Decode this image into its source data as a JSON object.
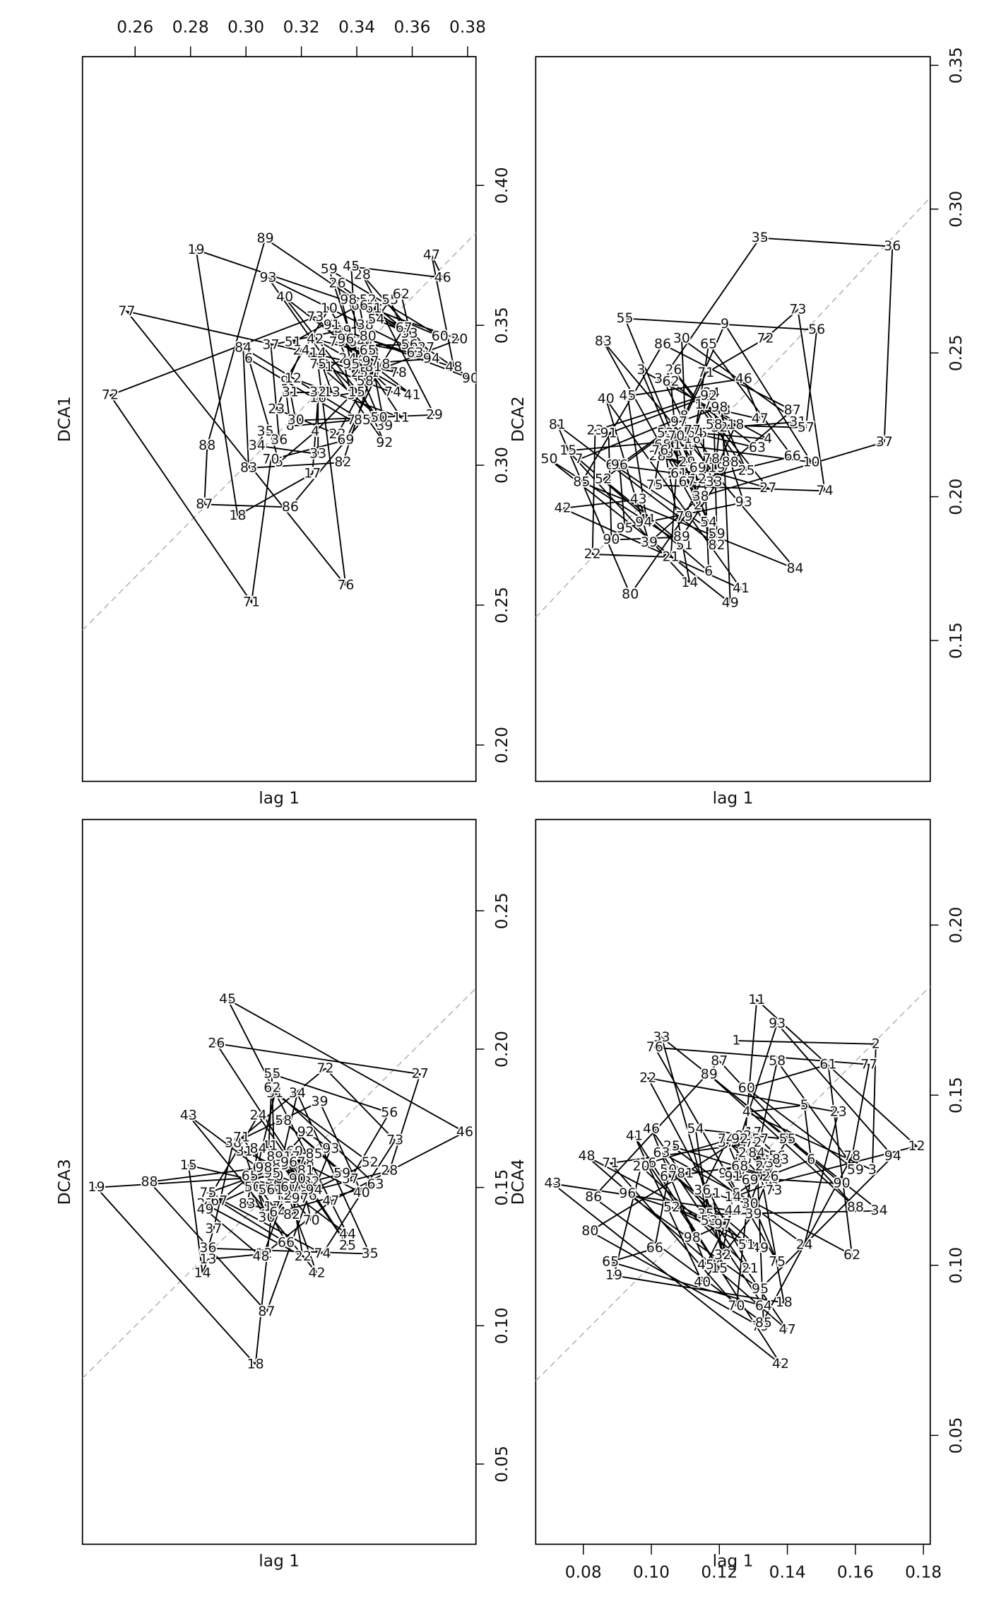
{
  "chart_data": [
    {
      "type": "lag",
      "y_label": "DCA1",
      "x_label": "lag 1",
      "x_axis_side": "top",
      "diagonal": true,
      "color": "#000000",
      "xlim": [
        0.241,
        0.383
      ],
      "ylim": [
        0.187,
        0.446
      ],
      "xticks": [
        0.26,
        0.28,
        {
          "value": 0.3,
          "label": "0.30"
        },
        0.32,
        0.34,
        0.36,
        0.38
      ],
      "yticks": [
        {
          "value": 0.2,
          "label": "0.20"
        },
        0.25,
        {
          "value": 0.3,
          "label": "0.30"
        },
        0.35,
        {
          "value": 0.4,
          "label": "0.40"
        }
      ],
      "labels": [
        null,
        1,
        2,
        3,
        4,
        5,
        6,
        7,
        8,
        9,
        10,
        11,
        12,
        13,
        14,
        15,
        16,
        17,
        18,
        19,
        20,
        21,
        22,
        23,
        24,
        25,
        26,
        27,
        28,
        29,
        30,
        31,
        32,
        33,
        34,
        35,
        36,
        37,
        38,
        39,
        40,
        41,
        42,
        43,
        44,
        45,
        46,
        47,
        48,
        49,
        50,
        51,
        52,
        53,
        54,
        55,
        56,
        57,
        58,
        59,
        60,
        61,
        62,
        63,
        64,
        65,
        66,
        67,
        68,
        69,
        70,
        71,
        72,
        73,
        74,
        75,
        76,
        77,
        78,
        79,
        80,
        81,
        82,
        83,
        84,
        85,
        86,
        87,
        88,
        89,
        90,
        91,
        92,
        93,
        94,
        95,
        96,
        97,
        98
      ],
      "values": [
        0.33,
        0.335,
        0.338,
        0.325,
        0.312,
        0.301,
        0.338,
        0.316,
        0.314,
        0.33,
        0.356,
        0.317,
        0.331,
        0.326,
        0.34,
        0.326,
        0.324,
        0.297,
        0.282,
        0.377,
        0.345,
        0.333,
        0.311,
        0.32,
        0.341,
        0.333,
        0.365,
        0.342,
        0.368,
        0.318,
        0.316,
        0.326,
        0.326,
        0.304,
        0.307,
        0.312,
        0.309,
        0.343,
        0.35,
        0.314,
        0.36,
        0.325,
        0.345,
        0.34,
        0.338,
        0.371,
        0.367,
        0.375,
        0.335,
        0.348,
        0.317,
        0.344,
        0.359,
        0.347,
        0.352,
        0.359,
        0.343,
        0.343,
        0.33,
        0.37,
        0.346,
        0.356,
        0.361,
        0.34,
        0.344,
        0.341,
        0.357,
        0.349,
        0.336,
        0.309,
        0.302,
        0.251,
        0.325,
        0.353,
        0.326,
        0.336,
        0.257,
        0.355,
        0.333,
        0.344,
        0.346,
        0.335,
        0.301,
        0.299,
        0.342,
        0.316,
        0.285,
        0.286,
        0.307,
        0.381,
        0.331,
        0.35,
        0.308,
        0.367,
        0.338,
        0.336,
        0.345,
        0.337,
        0.359
      ]
    },
    {
      "type": "lag",
      "y_label": "DCA2",
      "x_label": "lag 1",
      "diagonal": true,
      "color": "#000000",
      "xlim": [
        0.158,
        0.304
      ],
      "ylim": [
        0.101,
        0.353
      ],
      "yticks": [
        0.15,
        {
          "value": 0.2,
          "label": "0.20"
        },
        0.25,
        {
          "value": 0.3,
          "label": "0.30"
        },
        0.35
      ],
      "labels": [
        null,
        1,
        2,
        3,
        4,
        5,
        6,
        7,
        8,
        9,
        10,
        11,
        12,
        13,
        14,
        15,
        16,
        17,
        18,
        19,
        20,
        21,
        22,
        23,
        24,
        25,
        26,
        27,
        28,
        29,
        30,
        31,
        32,
        33,
        34,
        35,
        36,
        37,
        38,
        39,
        40,
        41,
        42,
        43,
        44,
        45,
        46,
        47,
        48,
        49,
        50,
        51,
        52,
        53,
        54,
        55,
        56,
        57,
        58,
        59,
        60,
        61,
        62,
        63,
        64,
        65,
        66,
        67,
        68,
        69,
        70,
        71,
        72,
        73,
        74,
        75,
        76,
        77,
        78,
        79,
        80,
        81,
        82,
        83,
        84,
        85,
        86,
        87,
        88,
        89,
        90,
        91,
        92,
        93,
        94,
        95,
        96,
        97,
        98
      ],
      "values": [
        0.215,
        0.218,
        0.197,
        0.244,
        0.22,
        0.222,
        0.174,
        0.213,
        0.228,
        0.26,
        0.212,
        0.218,
        0.206,
        0.215,
        0.17,
        0.216,
        0.22,
        0.232,
        0.225,
        0.21,
        0.208,
        0.179,
        0.18,
        0.223,
        0.236,
        0.209,
        0.244,
        0.203,
        0.214,
        0.212,
        0.255,
        0.226,
        0.224,
        0.205,
        0.241,
        0.29,
        0.287,
        0.219,
        0.2,
        0.184,
        0.234,
        0.168,
        0.196,
        0.199,
        0.192,
        0.235,
        0.241,
        0.227,
        0.23,
        0.163,
        0.213,
        0.183,
        0.206,
        0.222,
        0.191,
        0.262,
        0.258,
        0.224,
        0.225,
        0.187,
        0.211,
        0.208,
        0.24,
        0.217,
        0.222,
        0.253,
        0.214,
        0.205,
        0.218,
        0.21,
        0.221,
        0.243,
        0.255,
        0.265,
        0.202,
        0.204,
        0.216,
        0.223,
        0.213,
        0.193,
        0.166,
        0.225,
        0.183,
        0.254,
        0.175,
        0.205,
        0.253,
        0.23,
        0.212,
        0.186,
        0.185,
        0.222,
        0.235,
        0.198,
        0.191,
        0.189,
        0.211,
        0.226,
        0.231
      ]
    },
    {
      "type": "lag",
      "y_label": "DCA3",
      "x_label": "lag 1",
      "diagonal": true,
      "color": "#000000",
      "xlim": [
        0.081,
        0.222
      ],
      "ylim": [
        0.021,
        0.283
      ],
      "yticks": [
        0.05,
        {
          "value": 0.1,
          "label": "0.10"
        },
        0.15,
        {
          "value": 0.2,
          "label": "0.20"
        },
        0.25
      ],
      "labels": [
        null,
        1,
        2,
        3,
        4,
        5,
        6,
        7,
        8,
        9,
        10,
        11,
        12,
        13,
        14,
        15,
        16,
        17,
        18,
        19,
        20,
        21,
        22,
        23,
        24,
        25,
        26,
        27,
        28,
        29,
        30,
        31,
        32,
        33,
        34,
        35,
        36,
        37,
        38,
        39,
        40,
        41,
        42,
        43,
        44,
        45,
        46,
        47,
        48,
        49,
        50,
        51,
        52,
        53,
        54,
        55,
        56,
        57,
        58,
        59,
        60,
        61,
        62,
        63,
        64,
        65,
        66,
        67,
        68,
        69,
        70,
        71,
        72,
        73,
        74,
        75,
        76,
        77,
        78,
        79,
        80,
        81,
        82,
        83,
        84,
        85,
        86,
        87,
        88,
        89,
        90,
        91,
        92,
        93,
        94,
        95,
        96,
        97,
        98
      ],
      "values": [
        0.15,
        0.155,
        0.16,
        0.148,
        0.152,
        0.146,
        0.14,
        0.151,
        0.157,
        0.162,
        0.153,
        0.146,
        0.126,
        0.124,
        0.119,
        0.158,
        0.149,
        0.143,
        0.086,
        0.15,
        0.154,
        0.16,
        0.125,
        0.144,
        0.176,
        0.129,
        0.202,
        0.191,
        0.156,
        0.147,
        0.139,
        0.163,
        0.152,
        0.158,
        0.184,
        0.126,
        0.128,
        0.135,
        0.166,
        0.181,
        0.148,
        0.165,
        0.119,
        0.176,
        0.133,
        0.218,
        0.17,
        0.145,
        0.125,
        0.142,
        0.15,
        0.184,
        0.159,
        0.147,
        0.149,
        0.191,
        0.177,
        0.153,
        0.174,
        0.155,
        0.15,
        0.149,
        0.186,
        0.151,
        0.141,
        0.154,
        0.13,
        0.145,
        0.157,
        0.163,
        0.138,
        0.168,
        0.193,
        0.167,
        0.126,
        0.148,
        0.156,
        0.161,
        0.159,
        0.15,
        0.161,
        0.156,
        0.14,
        0.144,
        0.164,
        0.162,
        0.147,
        0.105,
        0.152,
        0.158,
        0.153,
        0.161,
        0.17,
        0.164,
        0.149,
        0.155,
        0.159,
        0.146,
        0.157
      ]
    },
    {
      "type": "lag",
      "y_label": "DCA4",
      "x_label": "lag 1",
      "x_axis_side": "bottom",
      "diagonal": true,
      "color": "#000000",
      "xlim": [
        0.066,
        0.182
      ],
      "ylim": [
        0.018,
        0.231
      ],
      "xticks": [
        0.08,
        {
          "value": 0.1,
          "label": "0.10"
        },
        0.12,
        0.14,
        0.16,
        0.18
      ],
      "yticks": [
        0.05,
        {
          "value": 0.1,
          "label": "0.10"
        },
        0.15,
        {
          "value": 0.2,
          "label": "0.20"
        }
      ],
      "labels": [
        null,
        1,
        2,
        3,
        4,
        5,
        6,
        7,
        8,
        9,
        10,
        11,
        12,
        13,
        14,
        15,
        16,
        17,
        18,
        19,
        20,
        21,
        22,
        23,
        24,
        25,
        26,
        27,
        28,
        29,
        30,
        31,
        32,
        33,
        34,
        35,
        36,
        37,
        38,
        39,
        40,
        41,
        42,
        43,
        44,
        45,
        46,
        47,
        48,
        49,
        50,
        51,
        52,
        53,
        54,
        55,
        56,
        57,
        58,
        59,
        60,
        61,
        62,
        63,
        64,
        65,
        66,
        67,
        68,
        69,
        70,
        71,
        72,
        73,
        74,
        75,
        76,
        77,
        78,
        79,
        80,
        81,
        82,
        83,
        84,
        85,
        86,
        87,
        88,
        89,
        90,
        91,
        92,
        93,
        94,
        95,
        96,
        97,
        98
      ],
      "values": [
        0.125,
        0.166,
        0.165,
        0.128,
        0.145,
        0.147,
        0.131,
        0.125,
        0.121,
        0.127,
        0.131,
        0.178,
        0.135,
        0.124,
        0.12,
        0.099,
        0.13,
        0.139,
        0.089,
        0.097,
        0.129,
        0.099,
        0.155,
        0.145,
        0.106,
        0.135,
        0.126,
        0.128,
        0.133,
        0.129,
        0.118,
        0.121,
        0.103,
        0.167,
        0.116,
        0.115,
        0.122,
        0.136,
        0.13,
        0.115,
        0.095,
        0.138,
        0.071,
        0.124,
        0.116,
        0.1,
        0.14,
        0.081,
        0.132,
        0.105,
        0.128,
        0.106,
        0.117,
        0.113,
        0.14,
        0.137,
        0.132,
        0.137,
        0.16,
        0.128,
        0.152,
        0.159,
        0.103,
        0.133,
        0.088,
        0.101,
        0.105,
        0.126,
        0.129,
        0.125,
        0.088,
        0.13,
        0.136,
        0.122,
        0.137,
        0.101,
        0.164,
        0.159,
        0.132,
        0.082,
        0.11,
        0.127,
        0.138,
        0.131,
        0.133,
        0.083,
        0.12,
        0.16,
        0.117,
        0.156,
        0.124,
        0.126,
        0.137,
        0.171,
        0.132,
        0.093,
        0.121,
        0.112,
        0.108
      ]
    }
  ]
}
